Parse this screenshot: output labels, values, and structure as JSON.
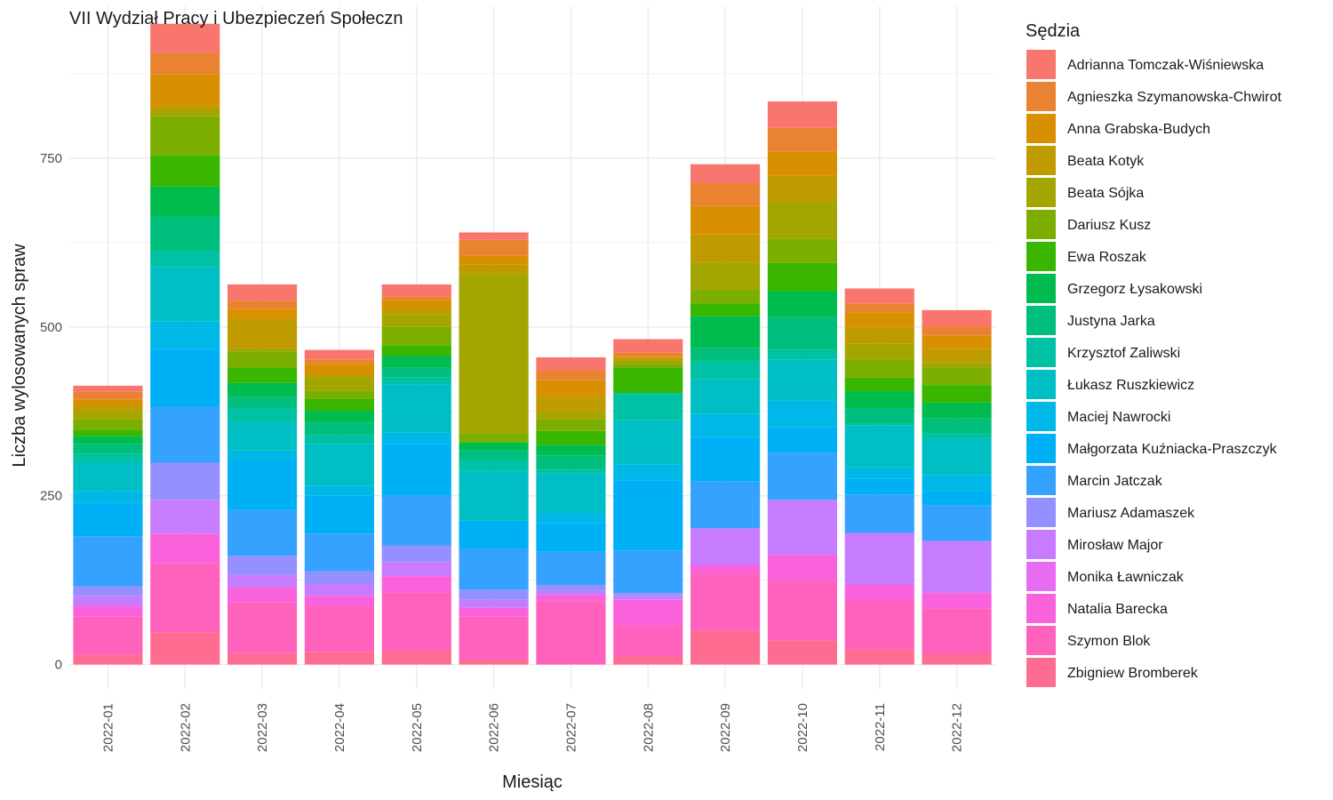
{
  "chart_data": {
    "type": "bar",
    "stacked": true,
    "title": "VII Wydział Pracy i Ubezpieczeń Społeczn",
    "xlabel": "Miesiąc",
    "ylabel": "Liczba wylosowanych spraw",
    "ylim": [
      -36,
      975
    ],
    "yticks": [
      0,
      250,
      500,
      750
    ],
    "ytick_labels": [
      "0",
      "250",
      "500",
      "750"
    ],
    "grid": true,
    "legend_title": "Sędzia",
    "legend_position": "right",
    "categories": [
      "2022-01",
      "2022-02",
      "2022-03",
      "2022-04",
      "2022-05",
      "2022-06",
      "2022-07",
      "2022-08",
      "2022-09",
      "2022-10",
      "2022-11",
      "2022-12"
    ],
    "series": [
      {
        "name": "Adrianna Tomczak-Wiśniewska",
        "color": "#F8766D",
        "values": [
          9,
          43,
          24,
          14,
          18,
          11,
          19,
          20,
          28,
          39,
          22,
          24
        ]
      },
      {
        "name": "Agnieszka Szymanowska-Chwirot",
        "color": "#EA8331",
        "values": [
          12,
          32,
          12,
          7,
          5,
          23,
          15,
          6,
          34,
          35,
          13,
          14
        ]
      },
      {
        "name": "Anna Grabska-Budych",
        "color": "#D89000",
        "values": [
          8,
          46,
          14,
          15,
          12,
          13,
          24,
          1,
          42,
          36,
          22,
          19
        ]
      },
      {
        "name": "Beata Kotyk",
        "color": "#C09B00",
        "values": [
          10,
          7,
          45,
          4,
          10,
          15,
          23,
          4,
          42,
          38,
          25,
          20
        ]
      },
      {
        "name": "Beata Sójka",
        "color": "#A3A500",
        "values": [
          11,
          9,
          4,
          20,
          18,
          235,
          11,
          6,
          40,
          55,
          23,
          8
        ]
      },
      {
        "name": "Dariusz Kusz",
        "color": "#7CAE00",
        "values": [
          15,
          58,
          24,
          12,
          27,
          13,
          17,
          5,
          20,
          36,
          27,
          26
        ]
      },
      {
        "name": "Ewa Roszak",
        "color": "#39B600",
        "values": [
          10,
          46,
          23,
          18,
          16,
          1,
          21,
          37,
          19,
          42,
          20,
          26
        ]
      },
      {
        "name": "Grzegorz Łysakowski",
        "color": "#00BB4E",
        "values": [
          11,
          45,
          20,
          18,
          17,
          11,
          15,
          0,
          47,
          38,
          25,
          23
        ]
      },
      {
        "name": "Justyna Jarka",
        "color": "#00BF7D",
        "values": [
          15,
          50,
          17,
          18,
          15,
          15,
          21,
          3,
          20,
          49,
          23,
          23
        ]
      },
      {
        "name": "Krzysztof Zaliwski",
        "color": "#00C1A3",
        "values": [
          13,
          24,
          21,
          13,
          10,
          16,
          6,
          38,
          26,
          14,
          3,
          8
        ]
      },
      {
        "name": "Łukasz Ruszkiewicz",
        "color": "#00BFC4",
        "values": [
          42,
          81,
          42,
          62,
          71,
          74,
          59,
          66,
          52,
          61,
          62,
          53
        ]
      },
      {
        "name": "Maciej Nawrocki",
        "color": "#00B8E7",
        "values": [
          17,
          40,
          16,
          15,
          17,
          0,
          15,
          23,
          34,
          39,
          17,
          24
        ]
      },
      {
        "name": "Małgorzata Kuźniacka-Praszczyk",
        "color": "#00B0F6",
        "values": [
          50,
          86,
          72,
          56,
          76,
          41,
          42,
          104,
          66,
          38,
          23,
          21
        ]
      },
      {
        "name": "Marcin Jatczak",
        "color": "#35A2FF",
        "values": [
          74,
          83,
          68,
          56,
          75,
          61,
          49,
          63,
          69,
          70,
          57,
          53
        ]
      },
      {
        "name": "Mariusz Adamaszek",
        "color": "#9590FF",
        "values": [
          14,
          55,
          28,
          18,
          24,
          15,
          9,
          4,
          0,
          0,
          0,
          0
        ]
      },
      {
        "name": "Mirosław Major",
        "color": "#C77CFF",
        "values": [
          15,
          50,
          19,
          18,
          21,
          12,
          6,
          6,
          55,
          82,
          77,
          77
        ]
      },
      {
        "name": "Monika Ławniczak",
        "color": "#E76BF3",
        "values": [
          0,
          0,
          0,
          0,
          0,
          0,
          0,
          0,
          0,
          0,
          0,
          0
        ]
      },
      {
        "name": "Natalia Barecka",
        "color": "#FA62DB",
        "values": [
          16,
          44,
          22,
          15,
          24,
          13,
          9,
          38,
          12,
          38,
          23,
          23
        ]
      },
      {
        "name": "Szymon Blok",
        "color": "#FF62BC",
        "values": [
          56,
          102,
          75,
          68,
          87,
          63,
          94,
          46,
          85,
          88,
          72,
          67
        ]
      },
      {
        "name": "Zbigniew Bromberek",
        "color": "#FF6C91",
        "values": [
          15,
          48,
          17,
          19,
          20,
          8,
          0,
          12,
          50,
          36,
          23,
          16
        ]
      }
    ]
  }
}
